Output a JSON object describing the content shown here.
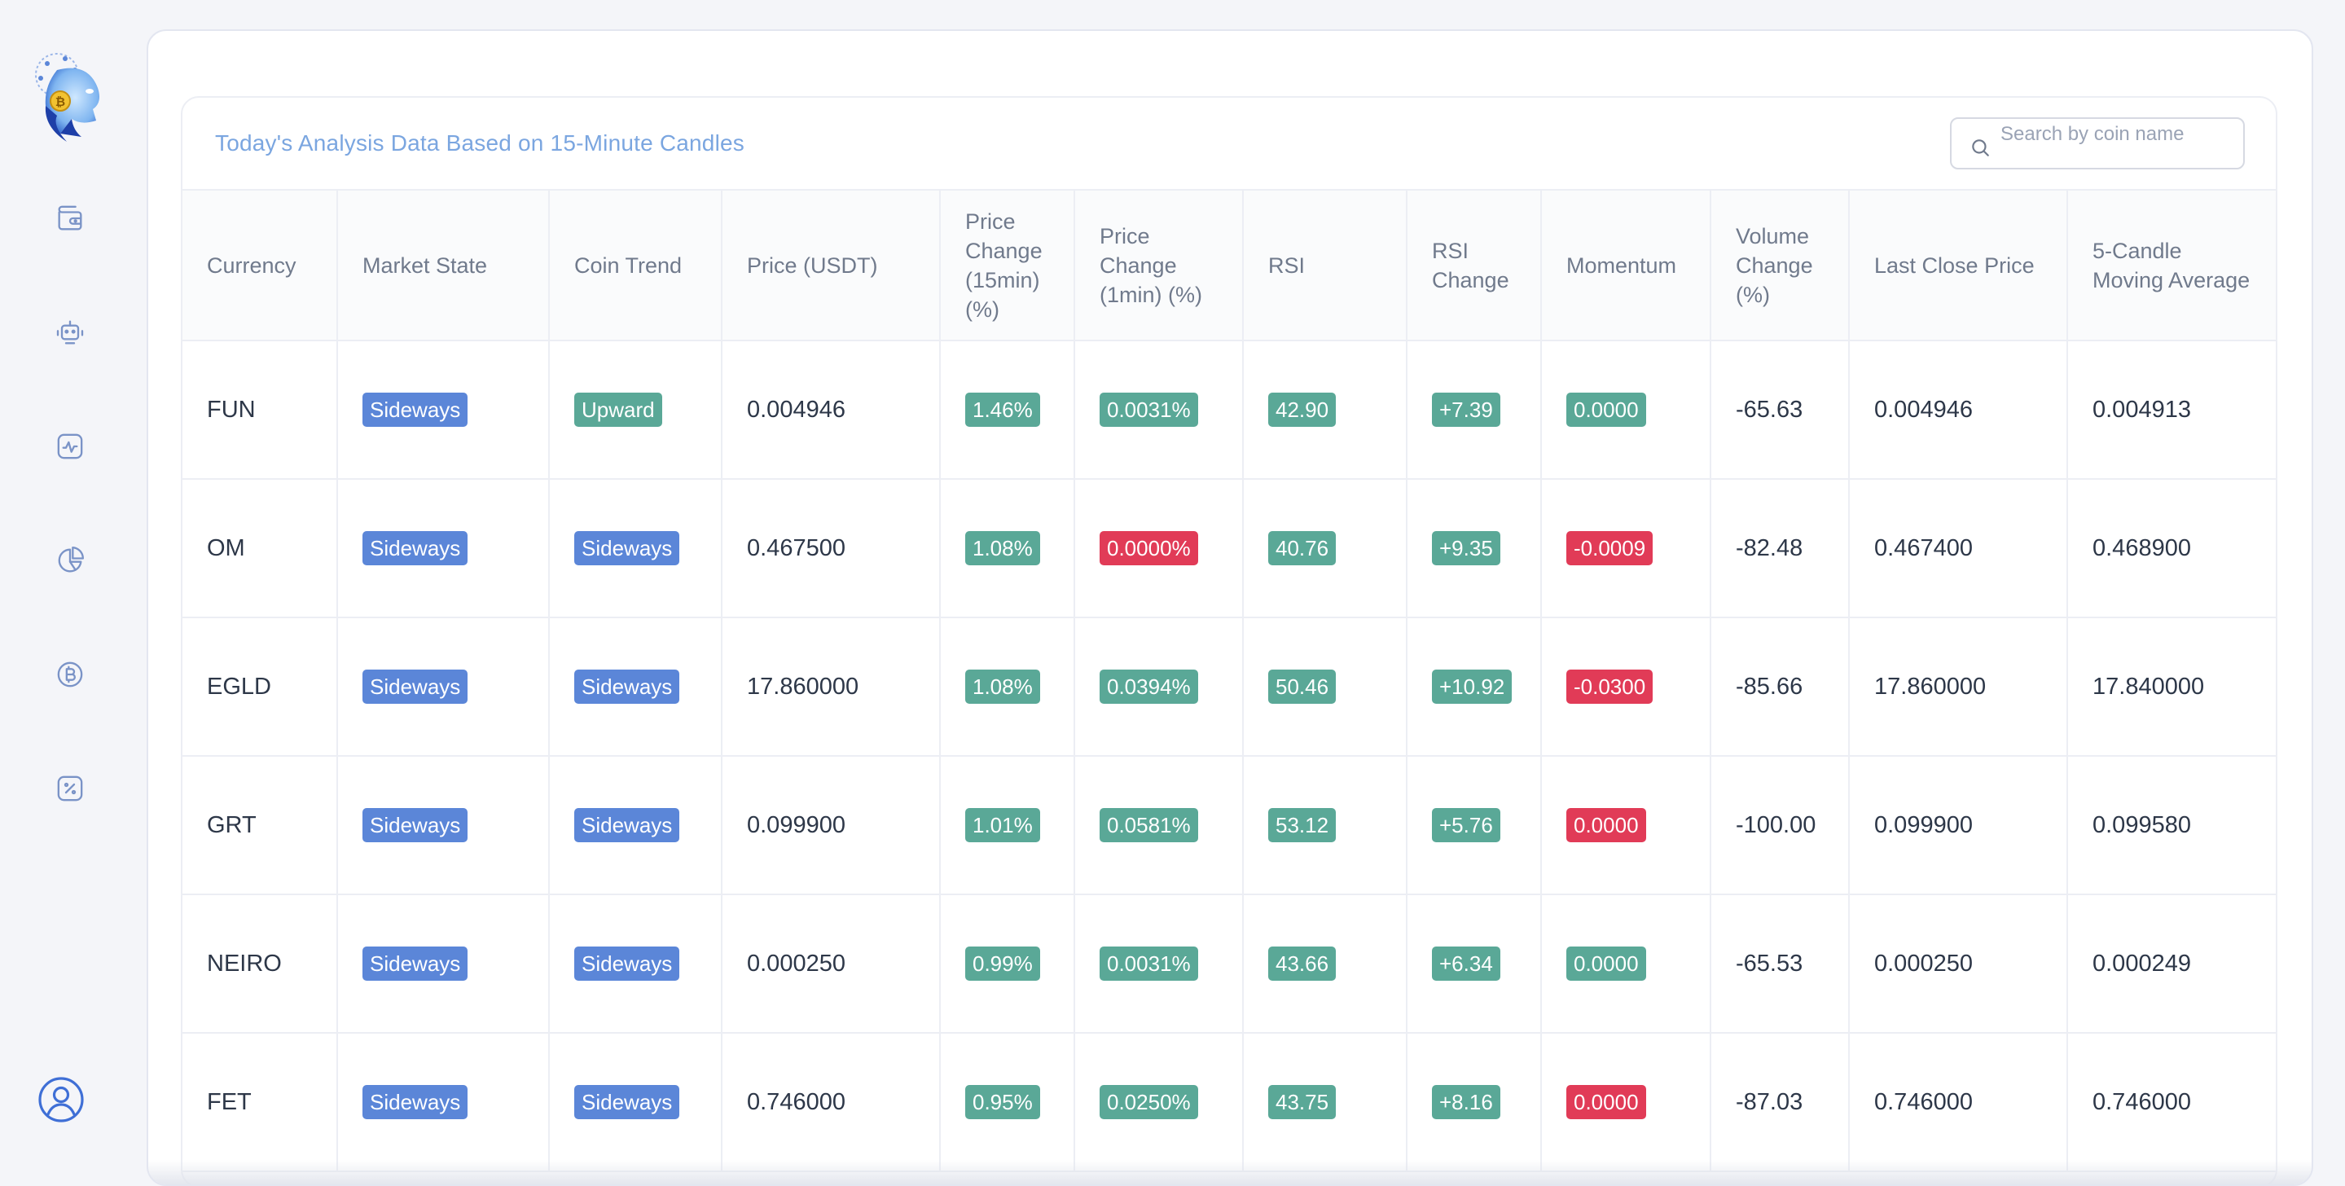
{
  "app": {
    "logo": "robot-head-logo"
  },
  "sidebar": {
    "items": [
      {
        "icon": "wallet-icon",
        "label": ""
      },
      {
        "icon": "robot-icon",
        "label": ""
      },
      {
        "icon": "activity-chart-icon",
        "label": ""
      },
      {
        "icon": "pie-chart-icon",
        "label": ""
      },
      {
        "icon": "bitcoin-icon",
        "label": ""
      },
      {
        "icon": "percent-icon",
        "label": ""
      }
    ],
    "user_icon": "user-avatar-icon"
  },
  "panel": {
    "title": "Today's Analysis Data Based on 15-Minute Candles",
    "search": {
      "placeholder": "Search by coin name",
      "value": ""
    }
  },
  "table": {
    "columns": [
      "Currency",
      "Market State",
      "Coin Trend",
      "Price (USDT)",
      "Price\nChange\n(15min)\n(%)",
      "Price\nChange\n(1min) (%)",
      "RSI",
      "RSI\nChange",
      "Momentum",
      "Volume\nChange\n(%)",
      "Last Close Price",
      "5-Candle\nMoving Average"
    ],
    "rows": [
      {
        "currency": "FUN",
        "market_state": "Sideways",
        "coin_trend": "Upward",
        "price": "0.004946",
        "change_15m": "1.46%",
        "change_15m_color": "green",
        "change_1m": "0.0031%",
        "change_1m_color": "green",
        "rsi": "42.90",
        "rsi_change": "+7.39",
        "momentum": "0.0000",
        "momentum_color": "green",
        "volume_change": "-65.63",
        "last_close": "0.004946",
        "ma5": "0.004913"
      },
      {
        "currency": "OM",
        "market_state": "Sideways",
        "coin_trend": "Sideways",
        "price": "0.467500",
        "change_15m": "1.08%",
        "change_15m_color": "green",
        "change_1m": "0.0000%",
        "change_1m_color": "red",
        "rsi": "40.76",
        "rsi_change": "+9.35",
        "momentum": "-0.0009",
        "momentum_color": "red",
        "volume_change": "-82.48",
        "last_close": "0.467400",
        "ma5": "0.468900"
      },
      {
        "currency": "EGLD",
        "market_state": "Sideways",
        "coin_trend": "Sideways",
        "price": "17.860000",
        "change_15m": "1.08%",
        "change_15m_color": "green",
        "change_1m": "0.0394%",
        "change_1m_color": "green",
        "rsi": "50.46",
        "rsi_change": "+10.92",
        "momentum": "-0.0300",
        "momentum_color": "red",
        "volume_change": "-85.66",
        "last_close": "17.860000",
        "ma5": "17.840000"
      },
      {
        "currency": "GRT",
        "market_state": "Sideways",
        "coin_trend": "Sideways",
        "price": "0.099900",
        "change_15m": "1.01%",
        "change_15m_color": "green",
        "change_1m": "0.0581%",
        "change_1m_color": "green",
        "rsi": "53.12",
        "rsi_change": "+5.76",
        "momentum": "0.0000",
        "momentum_color": "red",
        "volume_change": "-100.00",
        "last_close": "0.099900",
        "ma5": "0.099580"
      },
      {
        "currency": "NEIRO",
        "market_state": "Sideways",
        "coin_trend": "Sideways",
        "price": "0.000250",
        "change_15m": "0.99%",
        "change_15m_color": "green",
        "change_1m": "0.0031%",
        "change_1m_color": "green",
        "rsi": "43.66",
        "rsi_change": "+6.34",
        "momentum": "0.0000",
        "momentum_color": "green",
        "volume_change": "-65.53",
        "last_close": "0.000250",
        "ma5": "0.000249"
      },
      {
        "currency": "FET",
        "market_state": "Sideways",
        "coin_trend": "Sideways",
        "price": "0.746000",
        "change_15m": "0.95%",
        "change_15m_color": "green",
        "change_1m": "0.0250%",
        "change_1m_color": "green",
        "rsi": "43.75",
        "rsi_change": "+8.16",
        "momentum": "0.0000",
        "momentum_color": "red",
        "volume_change": "-87.03",
        "last_close": "0.746000",
        "ma5": "0.746000"
      }
    ]
  },
  "colors": {
    "badge_blue": "#5b86d8",
    "badge_green": "#5aa897",
    "badge_red": "#e13b57",
    "title_blue": "#7ba6e0",
    "icon_blue": "#7a93c7"
  }
}
